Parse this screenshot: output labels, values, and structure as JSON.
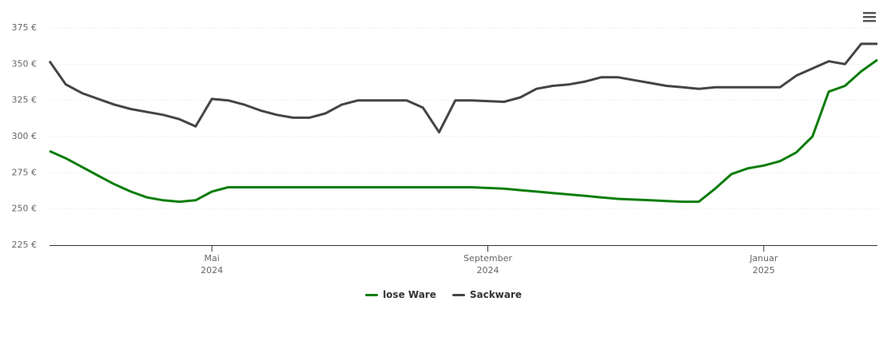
{
  "chart_data": {
    "type": "line",
    "categories": [
      null,
      null,
      null,
      null,
      null,
      null,
      null,
      null,
      null,
      null,
      "Mai\n2024",
      null,
      null,
      null,
      null,
      null,
      null,
      null,
      null,
      null,
      null,
      null,
      null,
      null,
      null,
      null,
      null,
      "September\n2024",
      null,
      null,
      null,
      null,
      null,
      null,
      null,
      null,
      null,
      null,
      null,
      null,
      null,
      null,
      null,
      null,
      "Januar\n2025",
      null,
      null,
      null,
      null,
      null,
      null,
      null
    ],
    "series": [
      {
        "name": "lose Ware",
        "color": "#0a7d0a",
        "values": [
          290,
          285,
          279,
          273,
          267,
          262,
          258,
          256,
          255,
          256,
          262,
          265,
          265,
          265,
          265,
          265,
          265,
          265,
          265,
          265,
          265,
          265,
          265,
          265,
          265,
          265,
          265,
          264.5,
          264,
          263,
          262,
          261,
          260,
          259,
          258,
          257,
          256.5,
          256,
          255.5,
          255,
          255,
          264,
          274,
          278,
          280,
          283,
          289,
          300,
          331,
          335,
          345,
          353
        ]
      },
      {
        "name": "Sackware",
        "color": "#444444",
        "values": [
          352,
          336,
          330,
          326,
          322,
          319,
          317,
          315,
          312,
          307,
          326,
          325,
          322,
          318,
          315,
          313,
          313,
          316,
          322,
          325,
          325,
          325,
          325,
          320,
          303,
          325,
          325,
          324.5,
          324,
          327,
          333,
          335,
          336,
          338,
          341,
          341,
          339,
          337,
          335,
          334,
          333,
          334,
          334,
          334,
          334,
          334,
          342,
          347,
          352,
          350,
          364,
          364
        ]
      }
    ],
    "ylim": [
      225,
      375
    ],
    "yticks": [
      {
        "value": 225,
        "label": "225 €"
      },
      {
        "value": 250,
        "label": "250 €"
      },
      {
        "value": 275,
        "label": "275 €"
      },
      {
        "value": 300,
        "label": "300 €"
      },
      {
        "value": 325,
        "label": "325 €"
      },
      {
        "value": 350,
        "label": "350 €"
      },
      {
        "value": 375,
        "label": "375 €"
      }
    ],
    "grid": true,
    "legend": "bottom"
  }
}
